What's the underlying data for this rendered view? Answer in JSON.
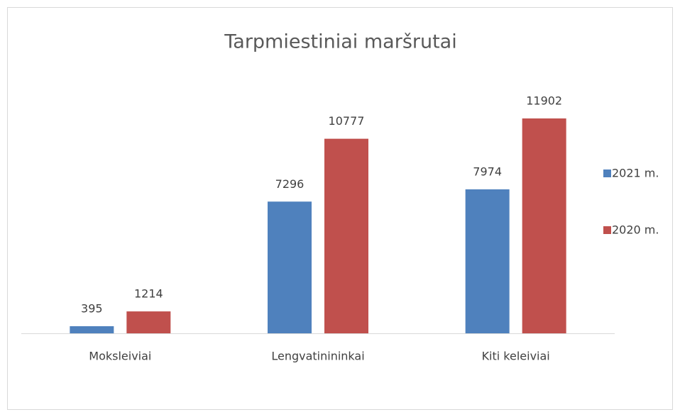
{
  "chart_data": {
    "type": "bar",
    "title": "Tarpmiestiniai maršrutai",
    "categories": [
      "Moksleiviai",
      "Lengvatinininkai",
      "Kiti keleiviai"
    ],
    "series": [
      {
        "name": "2021 m.",
        "color": "#4f81bd",
        "values": [
          395,
          7296,
          7974
        ]
      },
      {
        "name": "2020 m.",
        "color": "#c0504d",
        "values": [
          1214,
          10777,
          11902
        ]
      }
    ],
    "legend": "right"
  }
}
